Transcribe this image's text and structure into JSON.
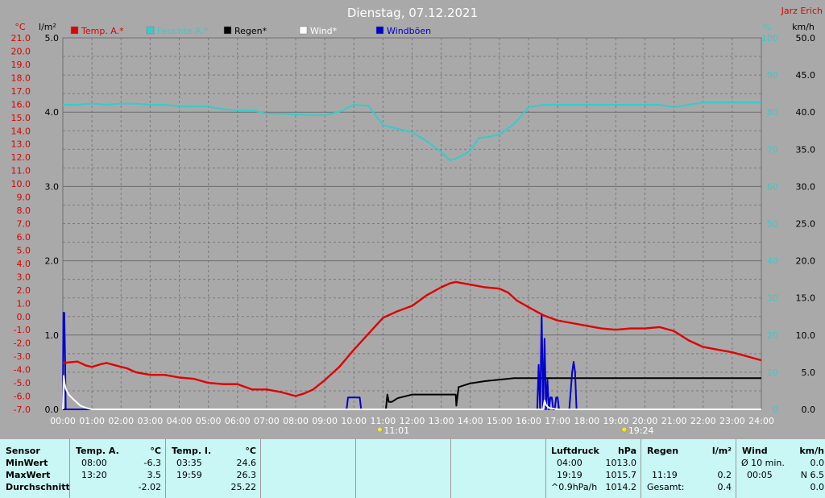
{
  "header": {
    "title": "Dienstag, 07.12.2021",
    "station": "Jarz Erich"
  },
  "legend": [
    {
      "label": "Temp. A.*",
      "color": "#e00000"
    },
    {
      "label": "Feuchte A.*",
      "color": "#33cccc"
    },
    {
      "label": "Regen*",
      "color": "#000000"
    },
    {
      "label": "Wind*",
      "color": "#ffffff"
    },
    {
      "label": "Windböen",
      "color": "#0000cc"
    }
  ],
  "axis_units": {
    "temp": "°C",
    "rain": "l/m²",
    "humidity": "%",
    "wind": "km/h"
  },
  "colors": {
    "temp": "#e00000",
    "humidity": "#33cccc",
    "rain": "#000000",
    "wind": "#ffffff",
    "gust": "#0000cc",
    "background": "#a9a9a9",
    "stats_bg": "#c8f7f5"
  },
  "sun_markers": [
    {
      "hour": 11.0,
      "label": "11:01"
    },
    {
      "hour": 19.4,
      "label": "19:24"
    }
  ],
  "chart_data": {
    "type": "line",
    "x_unit": "hour",
    "xlim": [
      0,
      24
    ],
    "xticks": [
      "00:00",
      "01:00",
      "02:00",
      "03:00",
      "04:00",
      "05:00",
      "06:00",
      "07:00",
      "08:00",
      "09:00",
      "10:00",
      "11:00",
      "12:00",
      "13:00",
      "14:00",
      "15:00",
      "16:00",
      "17:00",
      "18:00",
      "19:00",
      "20:00",
      "21:00",
      "22:00",
      "23:00",
      "24:00"
    ],
    "grid": true,
    "axes": {
      "temp": {
        "label": "°C",
        "range": [
          -7,
          21
        ],
        "ticks": [
          "21.0",
          "20.0",
          "19.0",
          "18.0",
          "17.0",
          "16.0",
          "15.0",
          "14.0",
          "13.0",
          "12.0",
          "11.0",
          "10.0",
          "9.0",
          "8.0",
          "7.0",
          "6.0",
          "5.0",
          "4.0",
          "3.0",
          "2.0",
          "1.0",
          "0.0",
          "-1.0",
          "-2.0",
          "-3.0",
          "-4.0",
          "-5.0",
          "-6.0",
          "-7.0"
        ]
      },
      "rain": {
        "label": "l/m²",
        "range": [
          0,
          5
        ],
        "ticks": [
          "5.0",
          "4.0",
          "3.0",
          "2.0",
          "1.0",
          "0.0"
        ]
      },
      "humidity": {
        "label": "%",
        "range": [
          0,
          100
        ],
        "ticks": [
          "100",
          "90",
          "80",
          "70",
          "60",
          "50",
          "40",
          "30",
          "20",
          "10",
          "0"
        ]
      },
      "wind": {
        "label": "km/h",
        "range": [
          0,
          50
        ],
        "ticks": [
          "50.0",
          "45.0",
          "40.0",
          "35.0",
          "30.0",
          "25.0",
          "20.0",
          "15.0",
          "10.0",
          "5.0",
          "0.0"
        ]
      }
    },
    "series": [
      {
        "name": "Temp. A.*",
        "axis": "temp",
        "x": [
          0,
          0.5,
          0.8,
          1.0,
          1.3,
          1.5,
          2.0,
          2.2,
          2.5,
          3.0,
          3.5,
          4.0,
          4.5,
          5.0,
          5.5,
          6.0,
          6.5,
          7.0,
          7.5,
          8.0,
          8.3,
          8.6,
          9.0,
          9.5,
          10.0,
          10.5,
          11.0,
          11.5,
          12.0,
          12.5,
          13.0,
          13.3,
          13.5,
          14.0,
          14.5,
          15.0,
          15.3,
          15.6,
          16.0,
          16.5,
          17.0,
          17.5,
          18.0,
          18.5,
          19.0,
          19.5,
          20.0,
          20.5,
          21.0,
          21.5,
          22.0,
          22.5,
          23.0,
          23.5,
          24.0
        ],
        "y": [
          -3.5,
          -3.4,
          -3.7,
          -3.8,
          -3.6,
          -3.5,
          -3.8,
          -3.9,
          -4.2,
          -4.4,
          -4.4,
          -4.6,
          -4.7,
          -5.0,
          -5.1,
          -5.1,
          -5.5,
          -5.5,
          -5.7,
          -6.0,
          -5.8,
          -5.5,
          -4.8,
          -3.8,
          -2.5,
          -1.3,
          -0.1,
          0.4,
          0.8,
          1.6,
          2.2,
          2.5,
          2.6,
          2.4,
          2.2,
          2.1,
          1.8,
          1.2,
          0.7,
          0.1,
          -0.3,
          -0.5,
          -0.7,
          -0.9,
          -1.0,
          -0.9,
          -0.9,
          -0.8,
          -1.1,
          -1.8,
          -2.3,
          -2.5,
          -2.7,
          -3.0,
          -3.3
        ]
      },
      {
        "name": "Feuchte A.*",
        "axis": "humidity",
        "x": [
          0,
          0.5,
          1.0,
          1.5,
          2.0,
          2.5,
          3.0,
          3.5,
          4.0,
          4.5,
          5.0,
          5.5,
          6.0,
          6.5,
          7.0,
          7.5,
          8.0,
          8.5,
          9.0,
          9.5,
          10.0,
          10.5,
          11.0,
          11.5,
          12.0,
          12.5,
          13.0,
          13.3,
          13.6,
          14.0,
          14.3,
          14.6,
          15.0,
          15.5,
          16.0,
          16.5,
          17.0,
          17.5,
          18.0,
          18.5,
          19.0,
          19.5,
          20.0,
          20.5,
          21.0,
          21.5,
          22.0,
          22.5,
          23.0,
          23.5,
          24.0
        ],
        "y": [
          82,
          82,
          82.3,
          82,
          82.3,
          82.3,
          82,
          82,
          81.6,
          81.5,
          81.5,
          80.8,
          80.5,
          80.5,
          79.6,
          79.6,
          79.4,
          79.2,
          79.2,
          80.1,
          82,
          81.7,
          76.5,
          75.5,
          74.6,
          72.2,
          69.3,
          67,
          67.8,
          69.6,
          73.1,
          73.3,
          74,
          76.8,
          81.3,
          82,
          82,
          82,
          82,
          82,
          82,
          82,
          82,
          82,
          81.3,
          82,
          82.6,
          82.6,
          82.6,
          82.6,
          82.6
        ]
      },
      {
        "name": "Regen*",
        "axis": "rain",
        "x": [
          0,
          11.1,
          11.15,
          11.2,
          11.3,
          11.5,
          12.0,
          12.5,
          13.0,
          13.5,
          13.52,
          13.6,
          14.0,
          14.5,
          15.0,
          15.5,
          16.0,
          17.0,
          18.0,
          19.0,
          20.0,
          21.0,
          22.0,
          23.0,
          24.0
        ],
        "y": [
          0,
          0,
          0.2,
          0.1,
          0.1,
          0.15,
          0.2,
          0.2,
          0.2,
          0.2,
          0.05,
          0.3,
          0.35,
          0.38,
          0.4,
          0.42,
          0.42,
          0.42,
          0.42,
          0.42,
          0.42,
          0.42,
          0.42,
          0.42,
          0.42
        ]
      },
      {
        "name": "Wind*",
        "axis": "wind",
        "x": [
          0,
          0.03,
          0.06,
          0.1,
          0.2,
          0.4,
          0.6,
          0.8,
          1.0,
          16.5,
          16.55,
          16.6,
          16.7,
          17.0,
          24.0
        ],
        "y": [
          0,
          4.5,
          3.5,
          2.8,
          2.0,
          1.2,
          0.5,
          0.2,
          0,
          0,
          1.2,
          0.6,
          0.2,
          0,
          0
        ]
      },
      {
        "name": "Windböen",
        "axis": "wind",
        "x": [
          0,
          0.02,
          0.05,
          0.08,
          0.1,
          0.12,
          0.2,
          9.75,
          9.8,
          9.9,
          10.1,
          10.2,
          10.25,
          16.3,
          16.35,
          16.4,
          16.45,
          16.5,
          16.55,
          16.6,
          16.65,
          16.7,
          16.75,
          16.8,
          16.85,
          16.9,
          16.95,
          17.0,
          17.05,
          17.1,
          17.15,
          17.4,
          17.45,
          17.5,
          17.55,
          17.6,
          17.65,
          24.0
        ],
        "y": [
          0,
          13.0,
          13.0,
          6.0,
          0,
          0,
          0,
          0,
          1.6,
          1.6,
          1.6,
          1.6,
          0,
          0,
          6.0,
          0,
          12.8,
          0,
          9.5,
          0,
          4.0,
          0,
          1.6,
          1.6,
          0,
          0,
          1.6,
          1.6,
          0,
          0,
          0,
          0,
          2.5,
          5.0,
          6.4,
          5.0,
          0,
          0
        ]
      }
    ]
  },
  "stats": {
    "sensor": {
      "title": "Sensor",
      "rows": [
        "MinWert",
        "MaxWert",
        "Durchschnitt"
      ]
    },
    "temp_a": {
      "title": "Temp. A.",
      "unit": "°C",
      "times": [
        "08:00",
        "13:20",
        ""
      ],
      "values": [
        "-6.3",
        "3.5",
        "-2.02"
      ]
    },
    "temp_i": {
      "title": "Temp. I.",
      "unit": "°C",
      "times": [
        "03:35",
        "19:59",
        ""
      ],
      "values": [
        "24.6",
        "26.3",
        "25.22"
      ]
    },
    "luftdruck": {
      "title": "Luftdruck",
      "unit": "hPa",
      "times": [
        "04:00",
        "19:19",
        "^0.9hPa/h"
      ],
      "values": [
        "1013.0",
        "1015.7",
        "1014.2"
      ]
    },
    "regen": {
      "title": "Regen",
      "unit": "l/m²",
      "times": [
        "",
        "11:19",
        "Gesamt:"
      ],
      "values": [
        "",
        "0.2",
        "0.4"
      ]
    },
    "wind": {
      "title": "Wind",
      "unit": "km/h",
      "times": [
        "Ø 10 min.",
        "00:05",
        ""
      ],
      "values": [
        "0.0",
        "N 6.5",
        "0.0"
      ]
    }
  }
}
